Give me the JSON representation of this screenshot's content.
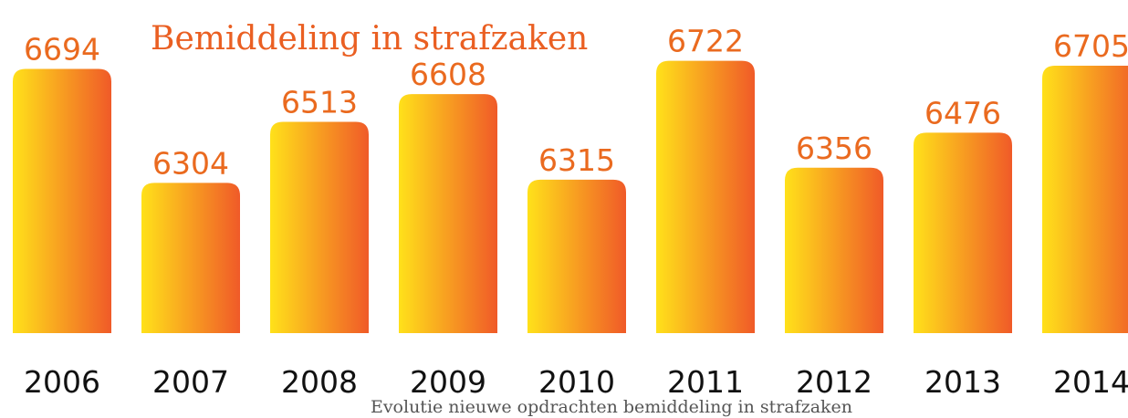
{
  "chart_data": {
    "type": "bar",
    "title": "Bemiddeling in strafzaken",
    "caption": "Evolutie nieuwe opdrachten bemiddeling in strafzaken",
    "categories": [
      "2006",
      "2007",
      "2008",
      "2009",
      "2010",
      "2011",
      "2012",
      "2013",
      "2014"
    ],
    "values": [
      6694,
      6304,
      6513,
      6608,
      6315,
      6722,
      6356,
      6476,
      6705
    ],
    "color": [
      "#ffe11a",
      "#f05a28"
    ],
    "ylim": [
      5790,
      6930
    ]
  }
}
